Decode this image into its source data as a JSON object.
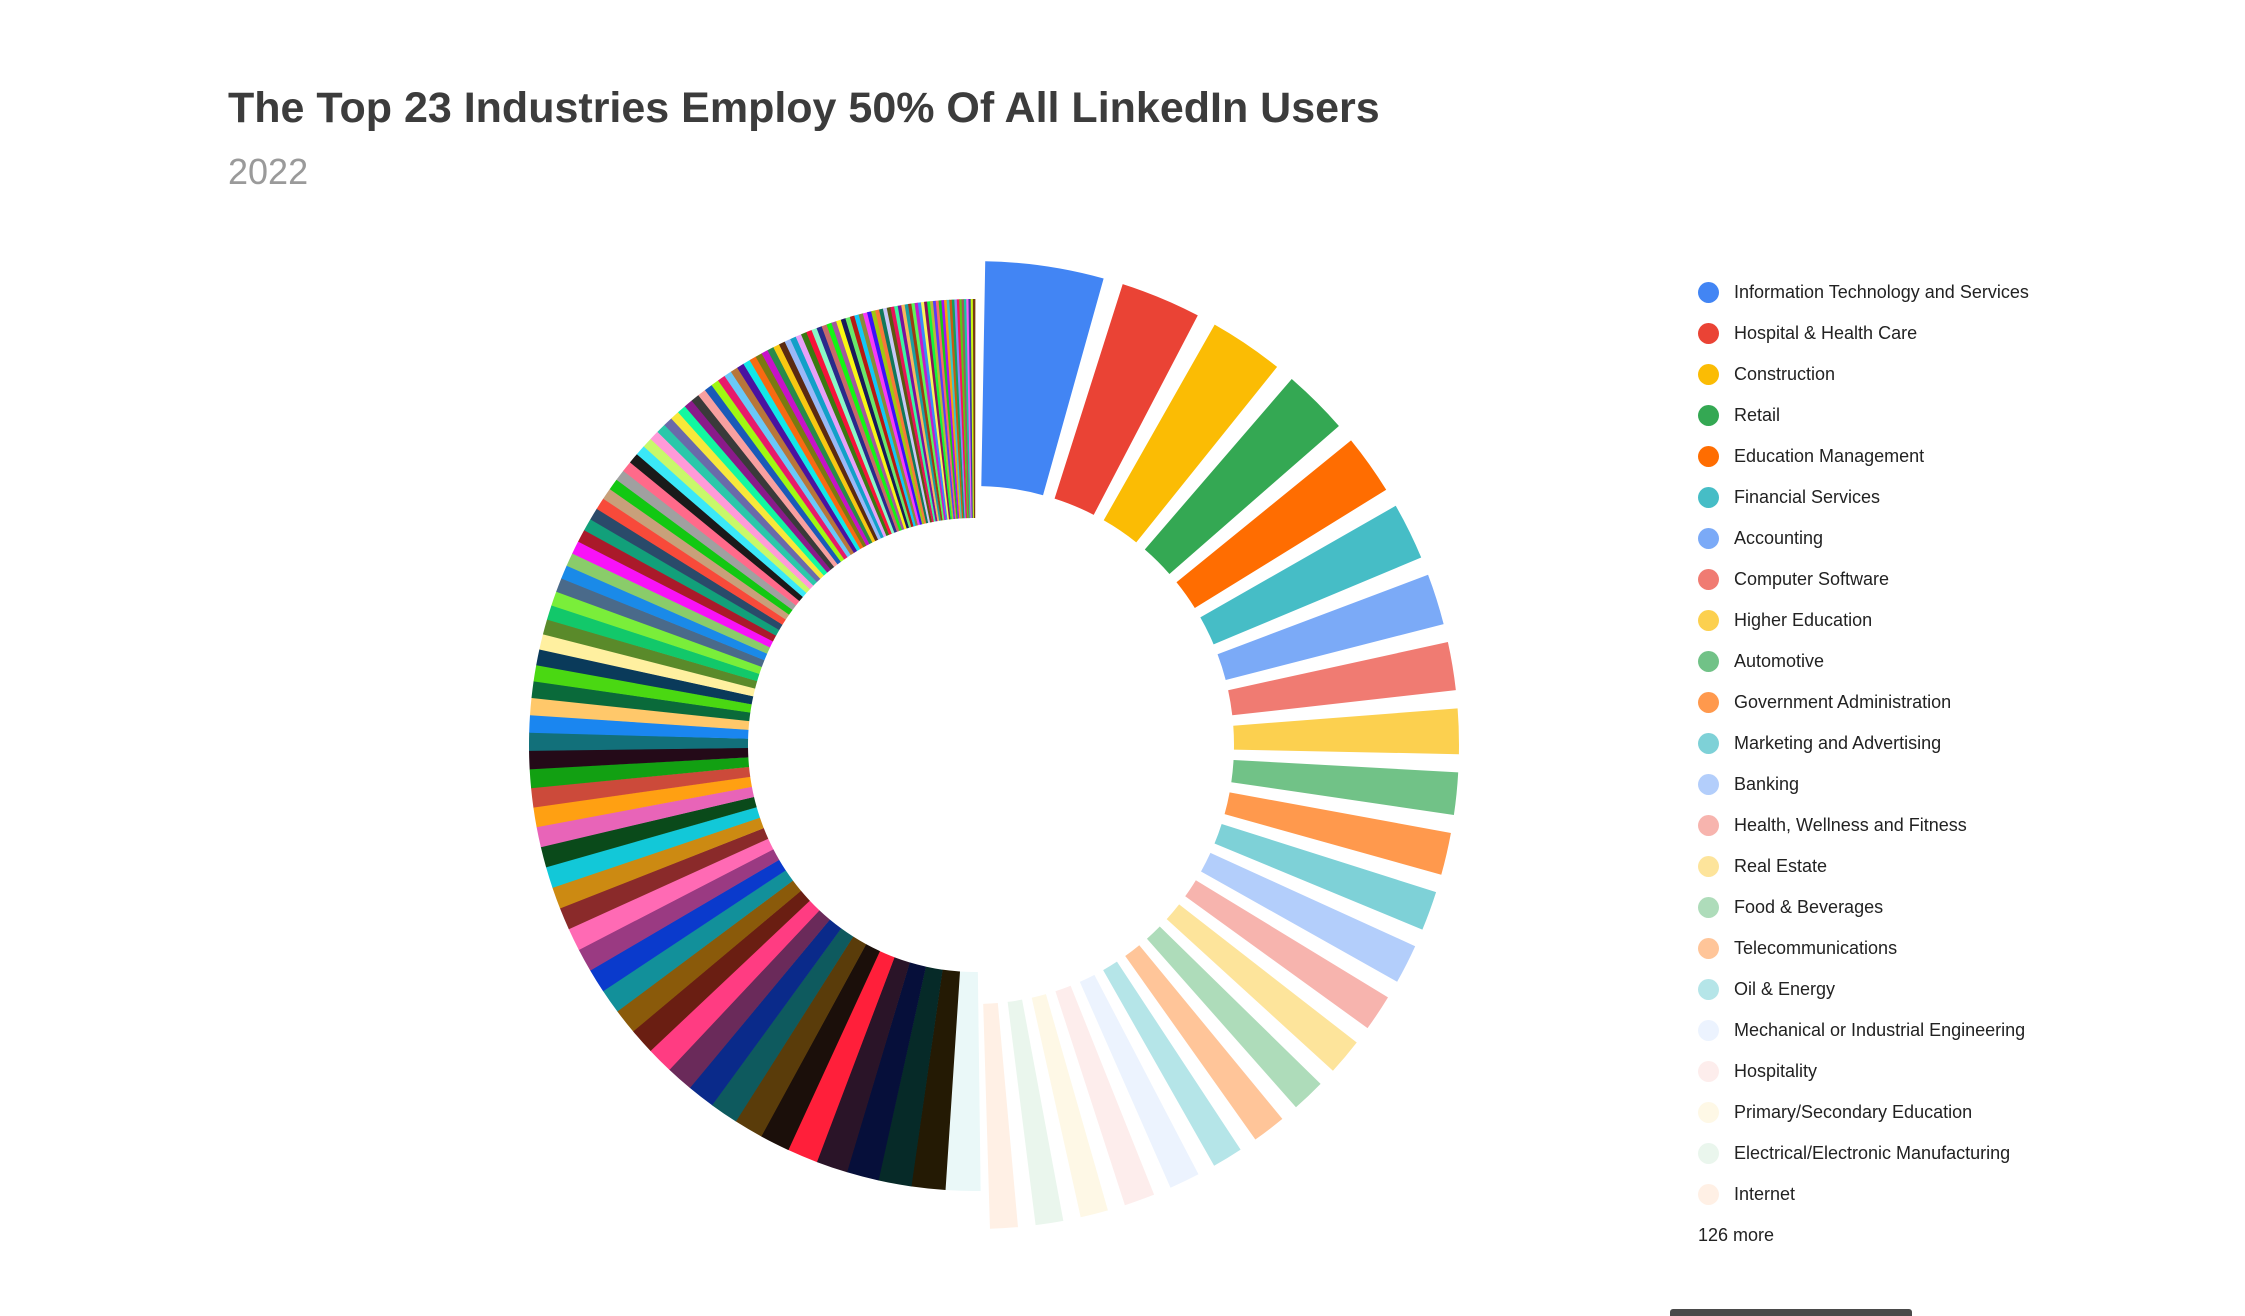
{
  "chart_data": {
    "type": "pie",
    "title": "The Top 23 Industries Employ 50% Of All LinkedIn Users",
    "subtitle": "2022",
    "legend_position": "right",
    "categories": [
      "Information Technology and Services",
      "Hospital & Health Care",
      "Construction",
      "Retail",
      "Education Management",
      "Financial Services",
      "Accounting",
      "Computer Software",
      "Higher Education",
      "Automotive",
      "Government Administration",
      "Marketing and Advertising",
      "Banking",
      "Health, Wellness and Fitness",
      "Real Estate",
      "Food & Beverages",
      "Telecommunications",
      "Oil & Energy",
      "Mechanical or Industrial Engineering",
      "Hospitality",
      "Primary/Secondary Education",
      "Electrical/Electronic Manufacturing",
      "Internet"
    ],
    "values": [
      4.6,
      3.3,
      3.1,
      2.8,
      2.6,
      2.5,
      2.3,
      2.2,
      2.1,
      2.0,
      2.0,
      1.9,
      1.9,
      1.8,
      1.8,
      1.7,
      1.7,
      1.6,
      1.6,
      1.6,
      1.5,
      1.5,
      1.5
    ],
    "colors": [
      "#4285F4",
      "#EA4335",
      "#FBBC04",
      "#34A853",
      "#FF6D01",
      "#46BDC6",
      "#7BAAF7",
      "#F07B72",
      "#FCD04F",
      "#71C287",
      "#FF994D",
      "#7ED1D7",
      "#B3CEFB",
      "#F7B4AE",
      "#FDE49B",
      "#AEDCBA",
      "#FFC599",
      "#B5E5E8",
      "#ECF3FE",
      "#FDEDEC",
      "#FEF8E6",
      "#EAF6ED",
      "#FFF0E5"
    ],
    "other_count": 126,
    "other_total": 50,
    "other_colors": [
      "#EAF8F8",
      "#241a04",
      "#062a28",
      "#060f3a",
      "#2a1428",
      "#ff1f3a",
      "#1b0f0a",
      "#5a3c0a",
      "#0e5a5e",
      "#0a2a8a",
      "#6a2a5a",
      "#ff3c82",
      "#6a1e12",
      "#8a5a0a",
      "#12909a",
      "#0a3acc",
      "#9a3a82",
      "#ff6ab4",
      "#8a2a2a",
      "#cc8a12",
      "#12c8d8",
      "#0a4a1a",
      "#e864b8",
      "#ffa012",
      "#cc4a3a",
      "#12a012",
      "#240a18",
      "#12707a",
      "#1a86f0",
      "#ffc86a",
      "#0a6a3a",
      "#4ad812",
      "#0a3a5a",
      "#fff0a0",
      "#5a8a2a",
      "#12c86a",
      "#7aee3a",
      "#4a6a8a",
      "#1a8ae8",
      "#8acc6a",
      "#f812f8",
      "#aa1a2a",
      "#12a07a",
      "#2a4a6a",
      "#f84a3a",
      "#c8a07a",
      "#12c812",
      "#a0a0a0",
      "#ff6a8a",
      "#1a1a1a",
      "#3ae8f8",
      "#c8f86a",
      "#ff9ad8",
      "#2ac8aa",
      "#6a6aaa",
      "#f8e83a",
      "#12f8a0",
      "#8a1a8a",
      "#3a3a3a",
      "#f8a0a0",
      "#1a5ab8",
      "#a0f812",
      "#e81a6a",
      "#6ac8f8",
      "#b8763a",
      "#4a12a0",
      "#12e8e8",
      "#f86a12",
      "#7a7a12",
      "#c812c8",
      "#2a8a4a",
      "#f8c812",
      "#5a2a12",
      "#9ab8f8",
      "#12a0c8",
      "#e8a0f8",
      "#3a7a12",
      "#f8123a",
      "#8af8c8",
      "#2a2a8a",
      "#c86a6a",
      "#12f812",
      "#a05aa0",
      "#f8f812",
      "#1a1a5a",
      "#6ae86a",
      "#b81a12",
      "#12c8f8",
      "#8a8a3a",
      "#f83af8",
      "#3a12f8",
      "#a0c812",
      "#f8783a",
      "#12785a",
      "#c8c8f8",
      "#5a5a12",
      "#e8125a",
      "#3af8a0",
      "#7812a0",
      "#f8b85a",
      "#1aa0a0",
      "#a03a12",
      "#5af85a",
      "#c81ac8",
      "#3a8af8",
      "#f8f85a",
      "#8a125a",
      "#12f83a",
      "#b8b83a",
      "#5a3af8",
      "#f86a6a",
      "#1ac81a",
      "#a012f8",
      "#f8a012",
      "#3ac8c8",
      "#c85a12",
      "#12a05a",
      "#8a8af8",
      "#f8125a",
      "#5ac812",
      "#a05a5a",
      "#12c8a0",
      "#f85af8",
      "#3a3aa0",
      "#c8f812",
      "#7a3a12"
    ]
  },
  "legend": {
    "more_label": "126 more"
  }
}
